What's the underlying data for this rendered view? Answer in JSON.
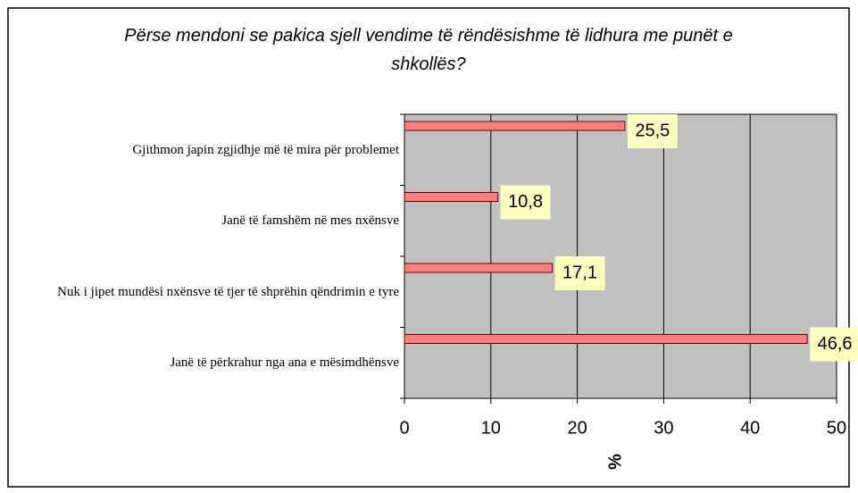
{
  "chart_data": {
    "type": "bar",
    "orientation": "horizontal",
    "title": "Përse mendoni se pakica sjell vendime të rëndësishme të lidhura me punët e shkollës?",
    "xlabel": "%",
    "categories": [
      "Gjithmon japin zgjidhje më të mira për problemet",
      "Janë të famshëm në mes nxënsve",
      "Nuk i jipet mundësi nxënsve të tjer të shprëhin qëndrimin e tyre",
      "Janë të përkrahur nga ana e mësimdhënsve"
    ],
    "values": [
      25.5,
      10.8,
      17.1,
      46.6
    ],
    "value_labels": [
      "25,5",
      "10,8",
      "17,1",
      "46,6"
    ],
    "color": "#ff8080",
    "xlim": [
      0,
      50
    ],
    "xticks": [
      0,
      10,
      20,
      30,
      40,
      50
    ],
    "grid": true
  }
}
